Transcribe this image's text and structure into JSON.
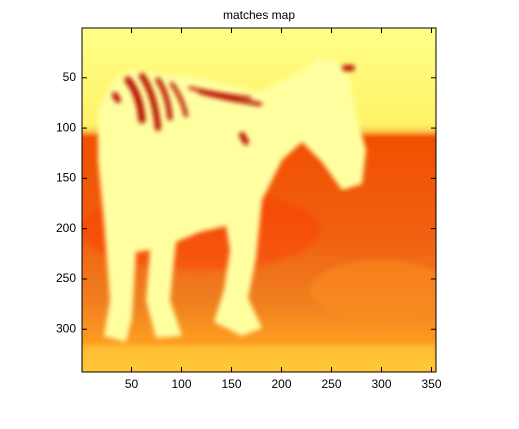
{
  "chart_data": {
    "type": "image",
    "title": "matches map",
    "xlim": [
      0.5,
      354.5
    ],
    "ylim": [
      0.5,
      342.5
    ],
    "y_direction": "reverse",
    "xticks": [
      50,
      100,
      150,
      200,
      250,
      300,
      350
    ],
    "yticks": [
      50,
      100,
      150,
      200,
      250,
      300
    ]
  }
}
